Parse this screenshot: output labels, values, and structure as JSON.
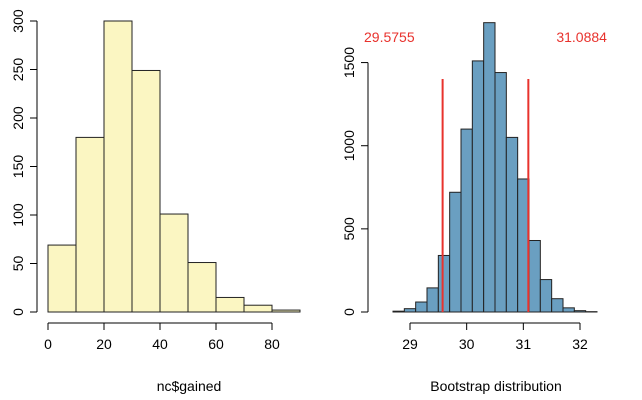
{
  "chart_data": [
    {
      "type": "bar",
      "subtype": "histogram",
      "title": "",
      "xlabel": "nc$gained",
      "ylabel": "",
      "bins": [
        [
          0,
          10
        ],
        [
          10,
          20
        ],
        [
          20,
          30
        ],
        [
          30,
          40
        ],
        [
          40,
          50
        ],
        [
          50,
          60
        ],
        [
          60,
          70
        ],
        [
          70,
          80
        ],
        [
          80,
          90
        ]
      ],
      "values": [
        69,
        180,
        300,
        249,
        101,
        51,
        15,
        7,
        2
      ],
      "xticks": [
        "0",
        "20",
        "40",
        "60",
        "80"
      ],
      "yticks": [
        "0",
        "50",
        "100",
        "150",
        "200",
        "250",
        "300"
      ],
      "xlim": [
        0,
        90
      ],
      "ylim": [
        0,
        300
      ],
      "bar_color": "#fbf6c2",
      "edge_color": "#222222",
      "grid": false
    },
    {
      "type": "bar",
      "subtype": "histogram",
      "title": "",
      "xlabel": "Bootstrap distribution",
      "ylabel": "",
      "bins": [
        [
          28.7,
          28.9
        ],
        [
          28.9,
          29.1
        ],
        [
          29.1,
          29.3
        ],
        [
          29.3,
          29.5
        ],
        [
          29.5,
          29.7
        ],
        [
          29.7,
          29.9
        ],
        [
          29.9,
          30.1
        ],
        [
          30.1,
          30.3
        ],
        [
          30.3,
          30.5
        ],
        [
          30.5,
          30.7
        ],
        [
          30.7,
          30.9
        ],
        [
          30.9,
          31.1
        ],
        [
          31.1,
          31.3
        ],
        [
          31.3,
          31.5
        ],
        [
          31.5,
          31.7
        ],
        [
          31.7,
          31.9
        ],
        [
          31.9,
          32.1
        ],
        [
          32.1,
          32.3
        ]
      ],
      "values": [
        5,
        20,
        60,
        145,
        340,
        720,
        1100,
        1510,
        1740,
        1440,
        1050,
        800,
        430,
        195,
        80,
        25,
        8,
        2
      ],
      "xticks": [
        "29",
        "30",
        "31",
        "32"
      ],
      "yticks": [
        "0",
        "500",
        "1000",
        "1500"
      ],
      "xlim": [
        28.7,
        32.3
      ],
      "ylim": [
        0,
        1750
      ],
      "bar_color": "#6a9fc1",
      "edge_color": "#222222",
      "grid": false,
      "reference_lines": [
        {
          "x": 29.5755,
          "label": "29.5755",
          "color": "#e8322d"
        },
        {
          "x": 31.0884,
          "label": "31.0884",
          "color": "#e8322d"
        }
      ]
    }
  ]
}
